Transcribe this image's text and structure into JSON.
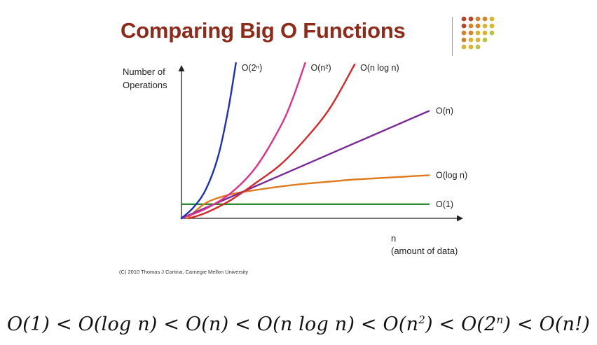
{
  "slide": {
    "title": "Comparing Big O Functions",
    "credit": "(C) 2010 Thomas J Cortina, Carnegie Mellon University",
    "dot_colors": [
      "#b5452a",
      "#d4842c",
      "#d7b535",
      "#b9c24a"
    ]
  },
  "chart_data": {
    "type": "line",
    "title": "",
    "ylabel": [
      "Number of",
      "Operations"
    ],
    "xlabel": [
      "n",
      "(amount of data)"
    ],
    "grid": false,
    "xlim": [
      0,
      10
    ],
    "ylim": [
      0,
      11
    ],
    "series": [
      {
        "name": "O(1)",
        "color": "#2e8a2e",
        "x": [
          0,
          3,
          6,
          9,
          10
        ],
        "y": [
          1,
          1,
          1,
          1,
          1
        ]
      },
      {
        "name": "O(log n)",
        "color": "#e07a1e",
        "x": [
          0.25,
          1,
          2,
          3,
          4,
          5,
          6,
          7,
          8,
          9,
          10
        ],
        "y": [
          0,
          1.1,
          1.7,
          2.0,
          2.25,
          2.45,
          2.6,
          2.75,
          2.85,
          2.95,
          3.05
        ]
      },
      {
        "name": "O(n)",
        "color": "#7a2a96",
        "x": [
          0,
          10
        ],
        "y": [
          0,
          7.6
        ]
      },
      {
        "name": "O(n log n)",
        "color": "#d8282a",
        "x": [
          0.3,
          1,
          2,
          3,
          4,
          5,
          6,
          7
        ],
        "y": [
          0,
          0.4,
          1.3,
          2.5,
          3.8,
          5.6,
          7.8,
          10.9
        ]
      },
      {
        "name": "O(n²)",
        "color": "#e0308a",
        "x": [
          0,
          1,
          2,
          3,
          4,
          4.5,
          5
        ],
        "y": [
          0,
          0.7,
          1.8,
          3.6,
          6.5,
          8.5,
          11
        ]
      },
      {
        "name": "O(2ⁿ)",
        "color": "#1d2fc2",
        "x": [
          0,
          0.5,
          1,
          1.5,
          1.9,
          2.2
        ],
        "y": [
          0,
          0.8,
          2.1,
          4.5,
          7.8,
          11
        ]
      }
    ]
  },
  "order_line": {
    "o1": "O(1)",
    "ologn": "O(log n)",
    "on": "O(n)",
    "onlogn": "O(n log n)",
    "on2": "O(n",
    "on2_exp": "2",
    "o2n": "O(2",
    "o2n_exp": "n",
    "onf": "O(n!)",
    "sep": "<",
    "close": ")"
  }
}
